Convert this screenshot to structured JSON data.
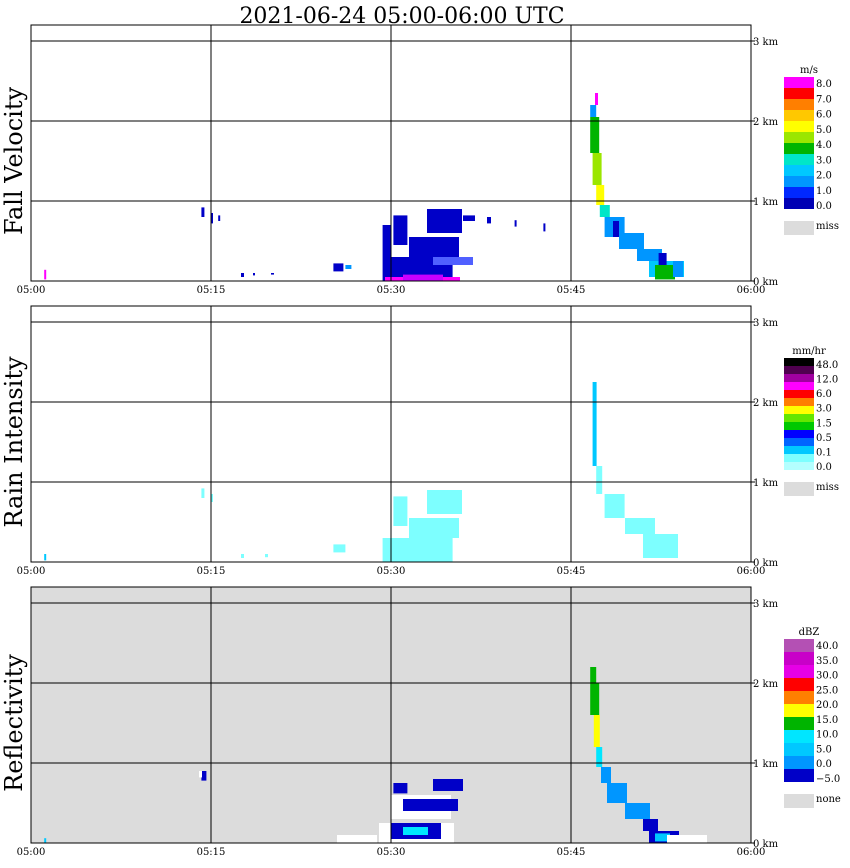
{
  "title": "2021-06-24   05:00-06:00 UTC",
  "x_ticks": [
    "05:00",
    "05:15",
    "05:30",
    "05:45",
    "06:00"
  ],
  "y_ticks": [
    "0 km",
    "1 km",
    "2 km",
    "3 km"
  ],
  "chart_data": [
    {
      "type": "heatmap",
      "ylabel": "Fall Velocity",
      "xlabel": "",
      "xlim": [
        "05:00",
        "06:00"
      ],
      "ylim_km": [
        0,
        3
      ],
      "grid": true,
      "background": "#ffffff",
      "colorbar": {
        "unit": "m/s",
        "labels": [
          "8.0",
          "7.0",
          "6.0",
          "5.0",
          "4.0",
          "3.0",
          "2.0",
          "1.0",
          "0.0"
        ],
        "colors": [
          "#ff00ff",
          "#ff0000",
          "#ff7f00",
          "#ffc800",
          "#ffff00",
          "#9be600",
          "#00b400",
          "#00e6c8",
          "#00c8ff",
          "#0096ff",
          "#0028ff",
          "#0000b4"
        ],
        "missing_label": "miss",
        "missing_color": "#dcdcdc"
      },
      "features": [
        {
          "time": "05:47",
          "height_km": 2.3,
          "value": "0.0-2.0"
        },
        {
          "time": "05:48",
          "height_km": 1.8,
          "value": "3.0-5.0"
        },
        {
          "time": "05:53",
          "height_km": 0.1,
          "value": "2.0-3.0"
        }
      ]
    },
    {
      "type": "heatmap",
      "ylabel": "Rain Intensity",
      "xlabel": "",
      "xlim": [
        "05:00",
        "06:00"
      ],
      "ylim_km": [
        0,
        3
      ],
      "grid": true,
      "background": "#ffffff",
      "colorbar": {
        "unit": "mm/hr",
        "labels": [
          "48.0",
          "12.0",
          "6.0",
          "3.0",
          "1.5",
          "0.5",
          "0.1",
          "0.0"
        ],
        "colors": [
          "#000000",
          "#500050",
          "#a000a0",
          "#ff00ff",
          "#ff0000",
          "#ff7f00",
          "#ffff00",
          "#64e600",
          "#00c800",
          "#0000ff",
          "#0064ff",
          "#00c8ff",
          "#7dffff",
          "#b4ffff"
        ],
        "missing_label": "miss",
        "missing_color": "#dcdcdc"
      },
      "features": [
        {
          "time": "05:47",
          "height_km": 2.2,
          "value": "0.1-0.5"
        },
        {
          "time": "05:33",
          "height_km": 0.4,
          "value": "0.0-0.1"
        }
      ]
    },
    {
      "type": "heatmap",
      "ylabel": "Reflectivity",
      "xlabel": "",
      "xlim": [
        "05:00",
        "06:00"
      ],
      "ylim_km": [
        0,
        3
      ],
      "grid": true,
      "background": "#dcdcdc",
      "colorbar": {
        "unit": "dBZ",
        "labels": [
          "40.0",
          "35.0",
          "30.0",
          "25.0",
          "20.0",
          "15.0",
          "10.0",
          "5.0",
          "0.0",
          "−5.0"
        ],
        "colors": [
          "#b450b4",
          "#c800c8",
          "#e600e6",
          "#ff0000",
          "#ff7f00",
          "#ffff00",
          "#00b400",
          "#00e6ff",
          "#00c8ff",
          "#0096ff",
          "#0000c8"
        ],
        "missing_label": "none",
        "missing_color": "#dcdcdc"
      },
      "features": [
        {
          "time": "05:47",
          "height_km": 2.2,
          "value": "10-20"
        },
        {
          "time": "05:33",
          "height_km": 0.2,
          "value": "-5-5"
        }
      ]
    }
  ]
}
